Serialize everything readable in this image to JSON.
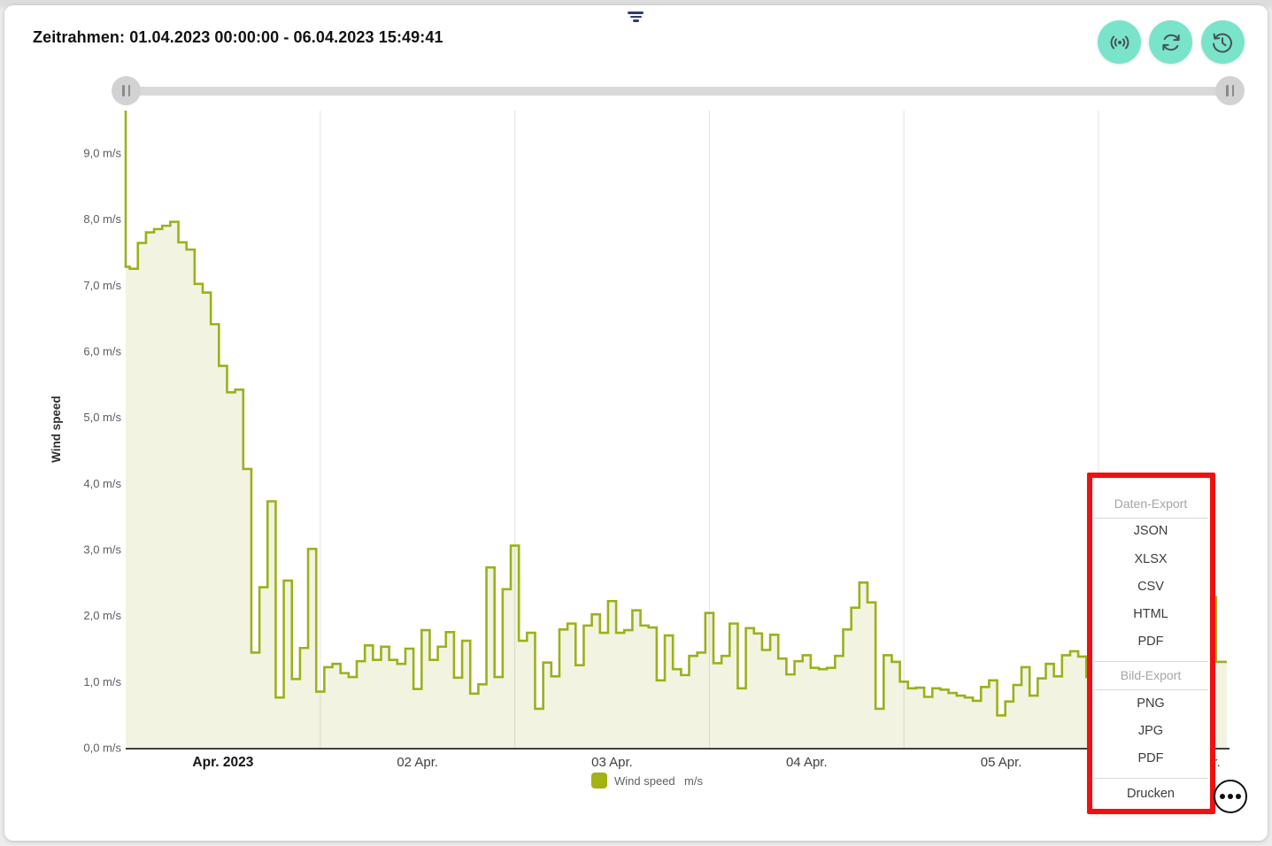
{
  "window": {
    "title": "Zeitrahmen: 01.04.2023 00:00:00 - 06.04.2023 15:49:41"
  },
  "toolbar": {
    "accent_color": "#79e4ca",
    "buttons": [
      {
        "name": "live-broadcast-button",
        "icon": "broadcast-icon"
      },
      {
        "name": "refresh-button",
        "icon": "refresh-icon"
      },
      {
        "name": "history-button",
        "icon": "history-icon"
      }
    ]
  },
  "range_slider": {
    "left_handle_icon": "pause-bars-icon",
    "right_handle_icon": "pause-bars-icon"
  },
  "chart_data": {
    "type": "area",
    "step": true,
    "title": "",
    "ylabel": "Wind speed",
    "unit": "m/s",
    "ylim": [
      0,
      9.64
    ],
    "y_tick_labels": [
      "0,0 m/s",
      "1,0 m/s",
      "2,0 m/s",
      "3,0 m/s",
      "4,0 m/s",
      "5,0 m/s",
      "6,0 m/s",
      "7,0 m/s",
      "8,0 m/s",
      "9,0 m/s"
    ],
    "x_tick_labels": [
      "Apr. 2023",
      "02 Apr.",
      "03 Apr.",
      "04 Apr.",
      "05 Apr.",
      "06 Apr."
    ],
    "x_start": "01.04.2023 00:00:00",
    "x_end": "06.04.2023 15:49:41",
    "grid": "vertical-day-lines",
    "legend": {
      "label": "Wind speed  m/s",
      "position": "bottom-center",
      "swatch_color": "#a3b214"
    },
    "line_color": "#9cb01c",
    "fill_color": "rgba(156,176,28,0.135)",
    "series": [
      {
        "name": "Wind speed",
        "x_unit": "hours since 01.04.2023 00:00",
        "values": [
          7.28,
          7.25,
          7.64,
          7.8,
          7.85,
          7.9,
          7.96,
          7.65,
          7.54,
          7.02,
          6.89,
          6.41,
          5.78,
          5.38,
          5.42,
          4.22,
          1.44,
          2.43,
          3.73,
          0.76,
          2.53,
          1.04,
          1.51,
          3.01,
          0.85,
          1.22,
          1.27,
          1.13,
          1.07,
          1.31,
          1.55,
          1.33,
          1.53,
          1.33,
          1.27,
          1.5,
          0.89,
          1.78,
          1.33,
          1.53,
          1.75,
          1.06,
          1.62,
          0.82,
          0.96,
          2.73,
          1.07,
          2.4,
          3.06,
          1.62,
          1.74,
          0.59,
          1.29,
          1.08,
          1.79,
          1.88,
          1.25,
          1.85,
          2.02,
          1.74,
          2.22,
          1.74,
          1.78,
          2.08,
          1.85,
          1.82,
          1.02,
          1.7,
          1.19,
          1.1,
          1.39,
          1.44,
          2.04,
          1.28,
          1.39,
          1.88,
          0.9,
          1.81,
          1.73,
          1.48,
          1.71,
          1.35,
          1.11,
          1.31,
          1.4,
          1.21,
          1.19,
          1.21,
          1.39,
          1.79,
          2.12,
          2.5,
          2.2,
          0.59,
          1.4,
          1.3,
          1.0,
          0.9,
          0.91,
          0.77,
          0.9,
          0.88,
          0.83,
          0.79,
          0.76,
          0.71,
          0.92,
          1.02,
          0.49,
          0.7,
          0.95,
          1.22,
          0.79,
          1.05,
          1.27,
          1.08,
          1.4,
          1.46,
          1.38,
          1.07,
          1.05,
          1.1,
          1.15,
          1.08,
          1.12,
          1.18,
          1.1,
          1.05,
          1.12,
          1.2,
          1.15,
          1.1,
          1.18,
          1.25,
          2.28,
          1.3
        ]
      }
    ],
    "last_point_fraction_of_hour": 0.828
  },
  "export_menu": {
    "highlight_color": "#ee1111",
    "sections": [
      {
        "title": "Daten-Export",
        "items": [
          "JSON",
          "XLSX",
          "CSV",
          "HTML",
          "PDF"
        ]
      },
      {
        "title": "Bild-Export",
        "items": [
          "PNG",
          "JPG",
          "PDF"
        ]
      }
    ],
    "footer_item": "Drucken"
  },
  "more_button": {
    "icon": "ellipsis-icon"
  }
}
